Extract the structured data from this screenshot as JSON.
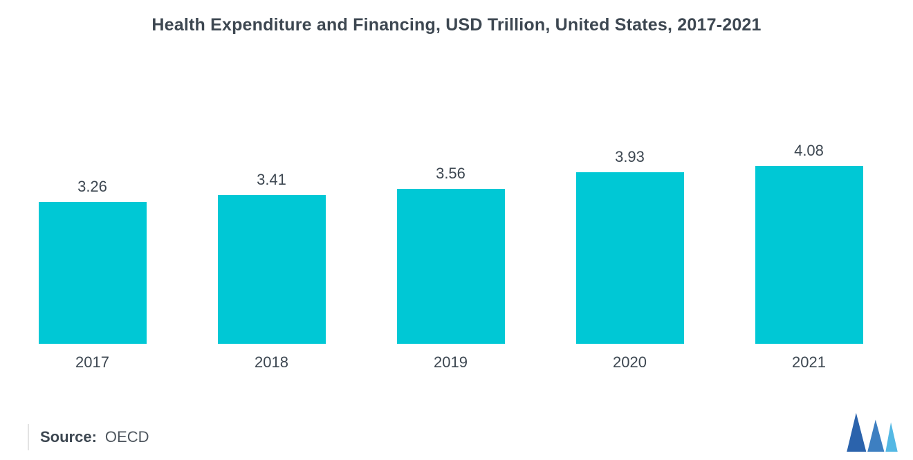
{
  "chart_data": {
    "type": "bar",
    "title": "Health Expenditure and Financing, USD Trillion, United States, 2017-2021",
    "categories": [
      "2017",
      "2018",
      "2019",
      "2020",
      "2021"
    ],
    "values": [
      3.26,
      3.41,
      3.56,
      3.93,
      4.08
    ],
    "value_labels": [
      "3.26",
      "3.41",
      "3.56",
      "3.93",
      "4.08"
    ],
    "xlabel": "",
    "ylabel": "",
    "ylim": [
      0,
      4.08
    ],
    "grid": false,
    "legend": false,
    "bar_color": "#00c8d5",
    "label_color": "#3d4751"
  },
  "footer": {
    "source_label": "Source:",
    "source_value": "OECD"
  },
  "logo": {
    "name": "mordor-intelligence-logo",
    "primary": "#2b63ac",
    "secondary": "#3d7fc1",
    "tertiary": "#54b8e4"
  }
}
